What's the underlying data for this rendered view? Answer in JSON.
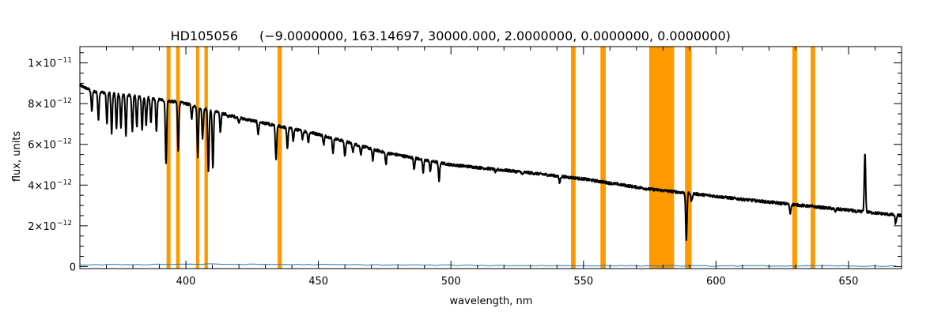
{
  "chart_data": {
    "type": "line",
    "title_name": "HD105056",
    "title_params": "(−9.0000000, 163.14697, 30000.000, 2.0000000, 0.0000000, 0.0000000)",
    "xlabel": "wavelength, nm",
    "ylabel": "flux, units",
    "xlim": [
      360,
      670
    ],
    "ylim": [
      -1e-13,
      1.08e-11
    ],
    "x_ticks": [
      400,
      450,
      500,
      550,
      600,
      650
    ],
    "y_ticks": [
      {
        "value": 0,
        "mantissa": "0",
        "exp": ""
      },
      {
        "value": 2e-12,
        "mantissa": "2×10",
        "exp": "−12"
      },
      {
        "value": 4e-12,
        "mantissa": "4×10",
        "exp": "−12"
      },
      {
        "value": 6e-12,
        "mantissa": "6×10",
        "exp": "−12"
      },
      {
        "value": 8e-12,
        "mantissa": "8×10",
        "exp": "−12"
      },
      {
        "value": 1e-11,
        "mantissa": "1×10",
        "exp": "−11"
      }
    ],
    "grid": false,
    "colors": {
      "flux": "#000000",
      "error": "#1f77b4",
      "mask": "#ff9900"
    },
    "masked_regions": [
      [
        392.7,
        394.2
      ],
      [
        396.3,
        397.7
      ],
      [
        403.8,
        405.0
      ],
      [
        407.0,
        408.3
      ],
      [
        434.6,
        436.2
      ],
      [
        545.3,
        547.0
      ],
      [
        556.4,
        558.4
      ],
      [
        574.8,
        584.2
      ],
      [
        588.3,
        590.8
      ],
      [
        628.8,
        630.6
      ],
      [
        635.7,
        637.4
      ]
    ],
    "series": [
      {
        "name": "flux",
        "continuum": [
          [
            360,
            8.9e-12
          ],
          [
            365,
            8.6e-12
          ],
          [
            380,
            8.4e-12
          ],
          [
            400,
            8e-12
          ],
          [
            420,
            7.3e-12
          ],
          [
            450,
            6.5e-12
          ],
          [
            475,
            5.6e-12
          ],
          [
            500,
            5e-12
          ],
          [
            530,
            4.6e-12
          ],
          [
            550,
            4.3e-12
          ],
          [
            575,
            3.8e-12
          ],
          [
            590,
            3.6e-12
          ],
          [
            610,
            3.3e-12
          ],
          [
            640,
            2.9e-12
          ],
          [
            670,
            2.5e-12
          ]
        ],
        "lines": [
          [
            364.5,
            7.6e-12
          ],
          [
            367.0,
            7.2e-12
          ],
          [
            370.2,
            7e-12
          ],
          [
            372.0,
            6.5e-12
          ],
          [
            373.8,
            6.8e-12
          ],
          [
            375.5,
            6.8e-12
          ],
          [
            377.4,
            6.4e-12
          ],
          [
            379.8,
            6.6e-12
          ],
          [
            381.5,
            6.8e-12
          ],
          [
            383.5,
            6.7e-12
          ],
          [
            385.0,
            6.9e-12
          ],
          [
            386.8,
            7e-12
          ],
          [
            388.9,
            6.6e-12
          ],
          [
            392.5,
            5e-12
          ],
          [
            397.1,
            5.7e-12
          ],
          [
            402.2,
            7.3e-12
          ],
          [
            404.5,
            5.4e-12
          ],
          [
            406.3,
            6.3e-12
          ],
          [
            408.5,
            4.6e-12
          ],
          [
            410.2,
            4.8e-12
          ],
          [
            413.0,
            6.6e-12
          ],
          [
            416.0,
            7.3e-12
          ],
          [
            420.0,
            7.1e-12
          ],
          [
            424.0,
            7.2e-12
          ],
          [
            427.3,
            6.5e-12
          ],
          [
            432.0,
            6.9e-12
          ],
          [
            434.0,
            5.2e-12
          ],
          [
            438.3,
            5.8e-12
          ],
          [
            440.5,
            6.2e-12
          ],
          [
            444.0,
            6.3e-12
          ],
          [
            446.2,
            6.1e-12
          ],
          [
            452.0,
            6e-12
          ],
          [
            455.5,
            5.6e-12
          ],
          [
            460.0,
            5.4e-12
          ],
          [
            463.0,
            5.6e-12
          ],
          [
            466.0,
            5.5e-12
          ],
          [
            470.5,
            5.2e-12
          ],
          [
            475.5,
            5e-12
          ],
          [
            486.1,
            4.8e-12
          ],
          [
            489.5,
            4.6e-12
          ],
          [
            492.2,
            4.7e-12
          ],
          [
            495.5,
            4.2e-12
          ],
          [
            516.9,
            4.6e-12
          ],
          [
            527.0,
            4.5e-12
          ],
          [
            541.0,
            4.1e-12
          ],
          [
            588.8,
            1.3e-12
          ],
          [
            590.8,
            3.2e-12
          ],
          [
            628.0,
            2.6e-12
          ],
          [
            645.0,
            2.7e-12
          ],
          [
            653.0,
            2.6e-12
          ],
          [
            656.2,
            5.6e-12
          ],
          [
            667.8,
            2.1e-12
          ]
        ]
      },
      {
        "name": "error",
        "points": [
          [
            360,
            8e-14
          ],
          [
            380,
            1e-13
          ],
          [
            400,
            1.2e-13
          ],
          [
            440,
            1e-13
          ],
          [
            480,
            8e-14
          ],
          [
            520,
            5e-14
          ],
          [
            560,
            4e-14
          ],
          [
            600,
            3e-14
          ],
          [
            640,
            3e-14
          ],
          [
            670,
            2e-14
          ]
        ]
      }
    ]
  }
}
